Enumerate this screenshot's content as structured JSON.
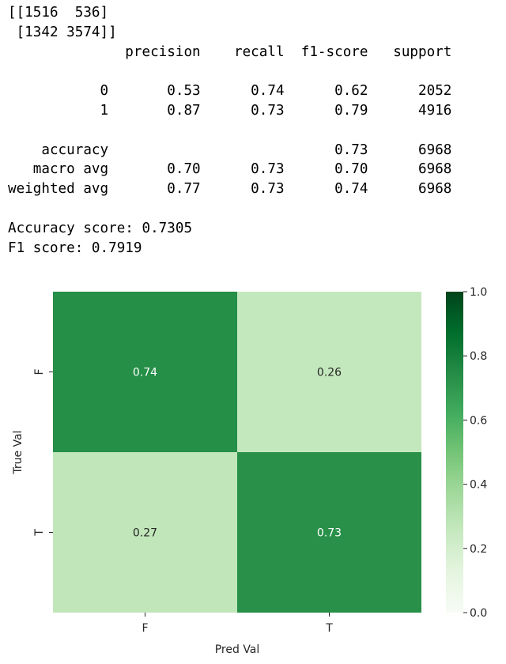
{
  "console": {
    "lines": [
      "[[1516  536]",
      " [1342 3574]]",
      "              precision    recall  f1-score   support",
      "",
      "           0       0.53      0.74      0.62      2052",
      "           1       0.87      0.73      0.79      4916",
      "",
      "    accuracy                           0.73      6968",
      "   macro avg       0.70      0.73      0.70      6968",
      "weighted avg       0.77      0.73      0.74      6968",
      "",
      "Accuracy score: 0.7305",
      "F1 score: 0.7919"
    ]
  },
  "chart_data": {
    "type": "heatmap",
    "x_categories": [
      "F",
      "T"
    ],
    "y_categories": [
      "F",
      "T"
    ],
    "values": [
      [
        0.74,
        0.26
      ],
      [
        0.27,
        0.73
      ]
    ],
    "cell_labels": [
      [
        "0.74",
        "0.26"
      ],
      [
        "0.27",
        "0.73"
      ]
    ],
    "xlabel": "Pred Val",
    "ylabel": "True Val",
    "colorbar": {
      "range": [
        0.0,
        1.0
      ],
      "tick_labels": [
        "0.0",
        "0.2",
        "0.4",
        "0.6",
        "0.8",
        "1.0"
      ],
      "tick_values": [
        0.0,
        0.2,
        0.4,
        0.6,
        0.8,
        1.0
      ]
    },
    "colormap": "Greens",
    "dark_text_color": "#262626",
    "light_text_color": "#ffffff"
  }
}
